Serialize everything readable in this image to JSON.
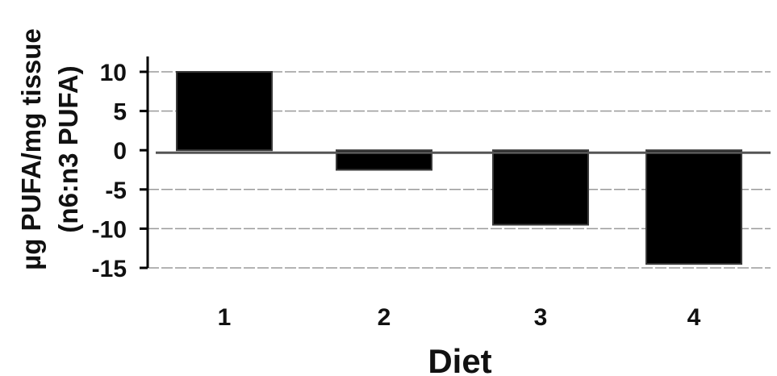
{
  "chart_data": {
    "type": "bar",
    "categories": [
      "1",
      "2",
      "3",
      "4"
    ],
    "values": [
      10,
      -2.5,
      -9.5,
      -14.5
    ],
    "xlabel": "Diet",
    "ylabel_lines": [
      "µg PUFA/mg tissue",
      "(n6:n3 PUFA)"
    ],
    "ylim": [
      -15,
      10
    ],
    "yticks": [
      10,
      5,
      0,
      -5,
      -10,
      -15
    ],
    "grid": true,
    "colors": {
      "bar": "#000000",
      "zero_line": "#555555",
      "grid": "#9a9a9a",
      "axis": "#000000"
    }
  }
}
